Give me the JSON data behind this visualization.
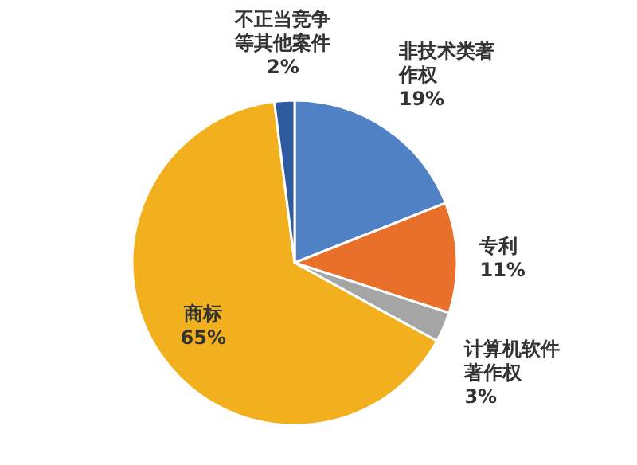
{
  "chart_data": {
    "type": "pie",
    "categories": [
      "非技术类著作权",
      "专利",
      "计算机软件著作权",
      "商标",
      "不正当竞争等其他案件"
    ],
    "values": [
      19,
      11,
      3,
      65,
      2
    ],
    "value_labels": [
      "19%",
      "11%",
      "3%",
      "65%",
      "2%"
    ],
    "colors": [
      "#4f81c4",
      "#e8702a",
      "#a5a5a5",
      "#f2b01e",
      "#2e5aa0"
    ]
  }
}
